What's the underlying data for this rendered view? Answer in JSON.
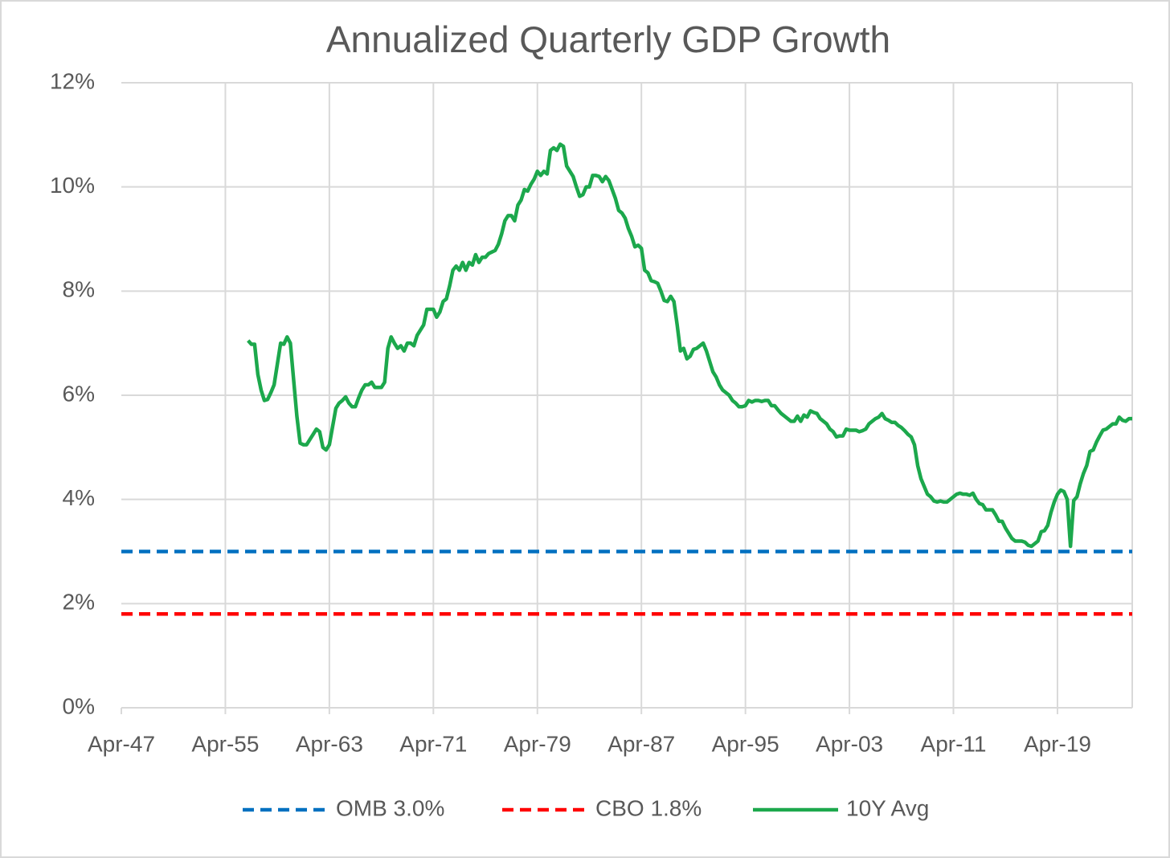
{
  "chart_data": {
    "type": "line",
    "title": "Annualized Quarterly GDP Growth",
    "categories": [
      "Apr-47",
      null,
      null,
      null,
      null,
      null,
      null,
      null,
      null,
      null,
      null,
      null,
      null,
      null,
      null,
      null,
      null,
      null,
      null,
      null,
      null,
      null,
      null,
      null,
      null,
      null,
      null,
      null,
      null,
      null,
      null,
      null,
      "Apr-55",
      null,
      null,
      null,
      null,
      null,
      null,
      null,
      null,
      null,
      null,
      null,
      null,
      null,
      null,
      null,
      null,
      null,
      null,
      null,
      null,
      null,
      null,
      null,
      null,
      null,
      null,
      null,
      null,
      null,
      null,
      null,
      "Apr-63",
      null,
      null,
      null,
      null,
      null,
      null,
      null,
      null,
      null,
      null,
      null,
      null,
      null,
      null,
      null,
      null,
      null,
      null,
      null,
      null,
      null,
      null,
      null,
      null,
      null,
      null,
      null,
      null,
      null,
      null,
      null,
      "Apr-71",
      null,
      null,
      null,
      null,
      null,
      null,
      null,
      null,
      null,
      null,
      null,
      null,
      null,
      null,
      null,
      null,
      null,
      null,
      null,
      null,
      null,
      null,
      null,
      null,
      null,
      null,
      null,
      null,
      null,
      null,
      null,
      "Apr-79",
      null,
      null,
      null,
      null,
      null,
      null,
      null,
      null,
      null,
      null,
      null,
      null,
      null,
      null,
      null,
      null,
      null,
      null,
      null,
      null,
      null,
      null,
      null,
      null,
      null,
      null,
      null,
      null,
      null,
      null,
      null,
      "Apr-87",
      null,
      null,
      null,
      null,
      null,
      null,
      null,
      null,
      null,
      null,
      null,
      null,
      null,
      null,
      null,
      null,
      null,
      null,
      null,
      null,
      null,
      null,
      null,
      null,
      null,
      null,
      null,
      null,
      null,
      null,
      null,
      "Apr-95",
      null,
      null,
      null,
      null,
      null,
      null,
      null,
      null,
      null,
      null,
      null,
      null,
      null,
      null,
      null,
      null,
      null,
      null,
      null,
      null,
      null,
      null,
      null,
      null,
      null,
      null,
      null,
      null,
      null,
      null,
      null,
      "Apr-03",
      null,
      null,
      null,
      null,
      null,
      null,
      null,
      null,
      null,
      null,
      null,
      null,
      null,
      null,
      null,
      null,
      null,
      null,
      null,
      null,
      null,
      null,
      null,
      null,
      null,
      null,
      null,
      null,
      null,
      null,
      null,
      "Apr-11",
      null,
      null,
      null,
      null,
      null,
      null,
      null,
      null,
      null,
      null,
      null,
      null,
      null,
      null,
      null,
      null,
      null,
      null,
      null,
      null,
      null,
      null,
      null,
      null,
      null,
      null,
      null,
      null,
      null,
      null,
      null,
      "Apr-19",
      null,
      null,
      null,
      null,
      null,
      null,
      null,
      null,
      null,
      null,
      null,
      null,
      null,
      null,
      null,
      null,
      null,
      null,
      null,
      null,
      null,
      null,
      null
    ],
    "series": [
      {
        "name": "OMB 3.0%",
        "color": "#0070c0",
        "dash": true,
        "values": [
          3,
          3,
          3,
          3,
          3,
          3,
          3,
          3,
          3,
          3,
          3,
          3,
          3,
          3,
          3,
          3,
          3,
          3,
          3,
          3,
          3,
          3,
          3,
          3,
          3,
          3,
          3,
          3,
          3,
          3,
          3,
          3,
          3,
          3,
          3,
          3,
          3,
          3,
          3,
          3,
          3,
          3,
          3,
          3,
          3,
          3,
          3,
          3,
          3,
          3,
          3,
          3,
          3,
          3,
          3,
          3,
          3,
          3,
          3,
          3,
          3,
          3,
          3,
          3,
          3,
          3,
          3,
          3,
          3,
          3,
          3,
          3,
          3,
          3,
          3,
          3,
          3,
          3,
          3,
          3,
          3,
          3,
          3,
          3,
          3,
          3,
          3,
          3,
          3,
          3,
          3,
          3,
          3,
          3,
          3,
          3,
          3,
          3,
          3,
          3,
          3,
          3,
          3,
          3,
          3,
          3,
          3,
          3,
          3,
          3,
          3,
          3,
          3,
          3,
          3,
          3,
          3,
          3,
          3,
          3,
          3,
          3,
          3,
          3,
          3,
          3,
          3,
          3,
          3,
          3,
          3,
          3,
          3,
          3,
          3,
          3,
          3,
          3,
          3,
          3,
          3,
          3,
          3,
          3,
          3,
          3,
          3,
          3,
          3,
          3,
          3,
          3,
          3,
          3,
          3,
          3,
          3,
          3,
          3,
          3,
          3,
          3,
          3,
          3,
          3,
          3,
          3,
          3,
          3,
          3,
          3,
          3,
          3,
          3,
          3,
          3,
          3,
          3,
          3,
          3,
          3,
          3,
          3,
          3,
          3,
          3,
          3,
          3,
          3,
          3,
          3,
          3,
          3,
          3,
          3,
          3,
          3,
          3,
          3,
          3,
          3,
          3,
          3,
          3,
          3,
          3,
          3,
          3,
          3,
          3,
          3,
          3,
          3,
          3,
          3,
          3,
          3,
          3,
          3,
          3,
          3,
          3,
          3,
          3,
          3,
          3,
          3,
          3,
          3,
          3,
          3,
          3,
          3,
          3,
          3,
          3,
          3,
          3,
          3,
          3,
          3,
          3,
          3,
          3,
          3,
          3,
          3,
          3,
          3,
          3,
          3,
          3,
          3,
          3,
          3,
          3,
          3,
          3,
          3,
          3,
          3,
          3,
          3,
          3,
          3,
          3,
          3,
          3,
          3,
          3,
          3,
          3,
          3,
          3,
          3,
          3,
          3,
          3,
          3,
          3,
          3,
          3,
          3,
          3,
          3,
          3,
          3,
          3,
          3,
          3,
          3,
          3,
          3,
          3,
          3,
          3,
          3,
          3,
          3,
          3,
          3,
          3,
          3,
          3,
          3,
          3,
          3,
          3,
          3,
          3,
          3,
          3
        ]
      },
      {
        "name": "CBO 1.8%",
        "color": "#ff0000",
        "dash": true,
        "values": [
          1.8,
          1.8,
          1.8,
          1.8,
          1.8,
          1.8,
          1.8,
          1.8,
          1.8,
          1.8,
          1.8,
          1.8,
          1.8,
          1.8,
          1.8,
          1.8,
          1.8,
          1.8,
          1.8,
          1.8,
          1.8,
          1.8,
          1.8,
          1.8,
          1.8,
          1.8,
          1.8,
          1.8,
          1.8,
          1.8,
          1.8,
          1.8,
          1.8,
          1.8,
          1.8,
          1.8,
          1.8,
          1.8,
          1.8,
          1.8,
          1.8,
          1.8,
          1.8,
          1.8,
          1.8,
          1.8,
          1.8,
          1.8,
          1.8,
          1.8,
          1.8,
          1.8,
          1.8,
          1.8,
          1.8,
          1.8,
          1.8,
          1.8,
          1.8,
          1.8,
          1.8,
          1.8,
          1.8,
          1.8,
          1.8,
          1.8,
          1.8,
          1.8,
          1.8,
          1.8,
          1.8,
          1.8,
          1.8,
          1.8,
          1.8,
          1.8,
          1.8,
          1.8,
          1.8,
          1.8,
          1.8,
          1.8,
          1.8,
          1.8,
          1.8,
          1.8,
          1.8,
          1.8,
          1.8,
          1.8,
          1.8,
          1.8,
          1.8,
          1.8,
          1.8,
          1.8,
          1.8,
          1.8,
          1.8,
          1.8,
          1.8,
          1.8,
          1.8,
          1.8,
          1.8,
          1.8,
          1.8,
          1.8,
          1.8,
          1.8,
          1.8,
          1.8,
          1.8,
          1.8,
          1.8,
          1.8,
          1.8,
          1.8,
          1.8,
          1.8,
          1.8,
          1.8,
          1.8,
          1.8,
          1.8,
          1.8,
          1.8,
          1.8,
          1.8,
          1.8,
          1.8,
          1.8,
          1.8,
          1.8,
          1.8,
          1.8,
          1.8,
          1.8,
          1.8,
          1.8,
          1.8,
          1.8,
          1.8,
          1.8,
          1.8,
          1.8,
          1.8,
          1.8,
          1.8,
          1.8,
          1.8,
          1.8,
          1.8,
          1.8,
          1.8,
          1.8,
          1.8,
          1.8,
          1.8,
          1.8,
          1.8,
          1.8,
          1.8,
          1.8,
          1.8,
          1.8,
          1.8,
          1.8,
          1.8,
          1.8,
          1.8,
          1.8,
          1.8,
          1.8,
          1.8,
          1.8,
          1.8,
          1.8,
          1.8,
          1.8,
          1.8,
          1.8,
          1.8,
          1.8,
          1.8,
          1.8,
          1.8,
          1.8,
          1.8,
          1.8,
          1.8,
          1.8,
          1.8,
          1.8,
          1.8,
          1.8,
          1.8,
          1.8,
          1.8,
          1.8,
          1.8,
          1.8,
          1.8,
          1.8,
          1.8,
          1.8,
          1.8,
          1.8,
          1.8,
          1.8,
          1.8,
          1.8,
          1.8,
          1.8,
          1.8,
          1.8,
          1.8,
          1.8,
          1.8,
          1.8,
          1.8,
          1.8,
          1.8,
          1.8,
          1.8,
          1.8,
          1.8,
          1.8,
          1.8,
          1.8,
          1.8,
          1.8,
          1.8,
          1.8,
          1.8,
          1.8,
          1.8,
          1.8,
          1.8,
          1.8,
          1.8,
          1.8,
          1.8,
          1.8,
          1.8,
          1.8,
          1.8,
          1.8,
          1.8,
          1.8,
          1.8,
          1.8,
          1.8,
          1.8,
          1.8,
          1.8,
          1.8,
          1.8,
          1.8,
          1.8,
          1.8,
          1.8,
          1.8,
          1.8,
          1.8,
          1.8,
          1.8,
          1.8,
          1.8,
          1.8,
          1.8,
          1.8,
          1.8,
          1.8,
          1.8,
          1.8,
          1.8,
          1.8,
          1.8,
          1.8,
          1.8,
          1.8,
          1.8,
          1.8,
          1.8,
          1.8,
          1.8,
          1.8,
          1.8,
          1.8,
          1.8,
          1.8,
          1.8,
          1.8,
          1.8,
          1.8,
          1.8,
          1.8,
          1.8,
          1.8,
          1.8,
          1.8,
          1.8,
          1.8,
          1.8,
          1.8,
          1.8,
          1.8,
          1.8,
          1.8,
          1.8,
          1.8
        ]
      },
      {
        "name": "10Y Avg",
        "color": "#1ca84c",
        "dash": false,
        "values": [
          null,
          null,
          null,
          null,
          null,
          null,
          null,
          null,
          null,
          null,
          null,
          null,
          null,
          null,
          null,
          null,
          null,
          null,
          null,
          null,
          null,
          null,
          null,
          null,
          null,
          null,
          null,
          null,
          null,
          null,
          null,
          null,
          null,
          null,
          null,
          null,
          null,
          null,
          null,
          7.05,
          6.98,
          6.98,
          6.4,
          6.1,
          5.9,
          5.92,
          6.05,
          6.2,
          6.6,
          7.0,
          6.98,
          7.12,
          7.0,
          6.3,
          5.6,
          5.08,
          5.05,
          5.05,
          5.15,
          5.25,
          5.35,
          5.3,
          5.0,
          4.95,
          5.05,
          5.4,
          5.75,
          5.85,
          5.9,
          5.97,
          5.85,
          5.78,
          5.78,
          5.95,
          6.1,
          6.2,
          6.2,
          6.25,
          6.15,
          6.15,
          6.15,
          6.25,
          6.9,
          7.12,
          7.0,
          6.9,
          6.95,
          6.85,
          7.0,
          7.0,
          6.95,
          7.15,
          7.25,
          7.35,
          7.65,
          7.65,
          7.65,
          7.5,
          7.6,
          7.8,
          7.85,
          8.1,
          8.4,
          8.48,
          8.4,
          8.55,
          8.4,
          8.55,
          8.5,
          8.7,
          8.55,
          8.65,
          8.65,
          8.72,
          8.75,
          8.78,
          8.9,
          9.1,
          9.35,
          9.45,
          9.45,
          9.35,
          9.65,
          9.75,
          9.95,
          9.92,
          10.05,
          10.15,
          10.3,
          10.22,
          10.3,
          10.25,
          10.7,
          10.75,
          10.7,
          10.82,
          10.78,
          10.4,
          10.3,
          10.2,
          10.0,
          9.82,
          9.85,
          10.0,
          10.0,
          10.22,
          10.22,
          10.2,
          10.1,
          10.2,
          10.12,
          9.95,
          9.78,
          9.55,
          9.5,
          9.4,
          9.2,
          9.05,
          8.85,
          8.88,
          8.82,
          8.4,
          8.35,
          8.2,
          8.18,
          8.15,
          8.0,
          7.82,
          7.8,
          7.9,
          7.8,
          7.35,
          6.85,
          6.9,
          6.7,
          6.75,
          6.88,
          6.9,
          6.95,
          7.0,
          6.85,
          6.65,
          6.45,
          6.35,
          6.2,
          6.1,
          6.05,
          6.0,
          5.9,
          5.85,
          5.78,
          5.78,
          5.8,
          5.9,
          5.87,
          5.9,
          5.9,
          5.88,
          5.9,
          5.9,
          5.8,
          5.8,
          5.72,
          5.65,
          5.6,
          5.55,
          5.5,
          5.5,
          5.6,
          5.5,
          5.62,
          5.58,
          5.7,
          5.67,
          5.65,
          5.55,
          5.5,
          5.45,
          5.35,
          5.3,
          5.2,
          5.22,
          5.22,
          5.35,
          5.33,
          5.33,
          5.33,
          5.3,
          5.32,
          5.35,
          5.45,
          5.5,
          5.55,
          5.58,
          5.65,
          5.55,
          5.52,
          5.48,
          5.48,
          5.42,
          5.38,
          5.32,
          5.25,
          5.2,
          5.05,
          4.65,
          4.4,
          4.25,
          4.1,
          4.05,
          3.97,
          3.95,
          3.97,
          3.95,
          3.95,
          4.0,
          4.05,
          4.1,
          4.12,
          4.1,
          4.1,
          4.08,
          4.12,
          4.0,
          3.92,
          3.9,
          3.8,
          3.8,
          3.8,
          3.7,
          3.58,
          3.58,
          3.45,
          3.35,
          3.25,
          3.2,
          3.2,
          3.2,
          3.18,
          3.12,
          3.1,
          3.15,
          3.2,
          3.38,
          3.4,
          3.5,
          3.75,
          3.95,
          4.1,
          4.18,
          4.15,
          4.0,
          3.1,
          3.98,
          4.05,
          4.3,
          4.5,
          4.65,
          4.92,
          4.95,
          5.1,
          5.22,
          5.33,
          5.35,
          5.4,
          5.45,
          5.45,
          5.58,
          5.52,
          5.5,
          5.55,
          5.55
        ]
      }
    ],
    "ylim": [
      0,
      12
    ],
    "yticks": [
      {
        "value": 0,
        "label": "0%"
      },
      {
        "value": 2,
        "label": "2%"
      },
      {
        "value": 4,
        "label": "4%"
      },
      {
        "value": 6,
        "label": "6%"
      },
      {
        "value": 8,
        "label": "8%"
      },
      {
        "value": 10,
        "label": "10%"
      },
      {
        "value": 12,
        "label": "12%"
      }
    ],
    "grid": true,
    "legend": "bottom"
  }
}
